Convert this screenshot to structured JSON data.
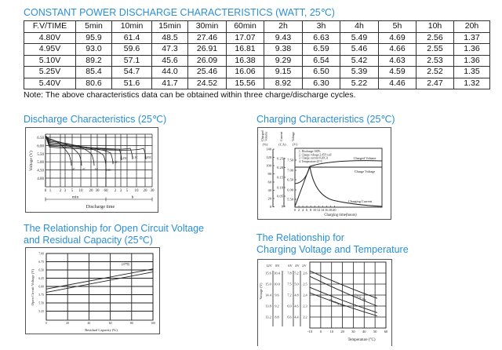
{
  "table": {
    "title": "CONSTANT POWER DISCHARGE CHARACTERISTICS (WATT, 25℃)",
    "headers": [
      "F.V/TIME",
      "5min",
      "10min",
      "15min",
      "30min",
      "60min",
      "2h",
      "3h",
      "4h",
      "5h",
      "10h",
      "20h"
    ],
    "rows": [
      [
        "4.80V",
        "95.9",
        "61.4",
        "48.5",
        "27.46",
        "17.07",
        "9.43",
        "6.63",
        "5.49",
        "4.69",
        "2.56",
        "1.37"
      ],
      [
        "4.95V",
        "93.0",
        "59.6",
        "47.3",
        "26.91",
        "16.81",
        "9.38",
        "6.59",
        "5.46",
        "4.66",
        "2.55",
        "1.36"
      ],
      [
        "5.10V",
        "89.2",
        "57.1",
        "45.6",
        "26.09",
        "16.38",
        "9.29",
        "6.54",
        "5.42",
        "4.63",
        "2.53",
        "1.36"
      ],
      [
        "5.25V",
        "85.4",
        "54.7",
        "44.0",
        "25.46",
        "16.06",
        "9.15",
        "6.50",
        "5.39",
        "4.59",
        "2.52",
        "1.35"
      ],
      [
        "5.40V",
        "80.6",
        "51.6",
        "41.7",
        "24.52",
        "15.56",
        "8.92",
        "6.30",
        "5.22",
        "4.46",
        "2.47",
        "1.32"
      ]
    ],
    "note": "Note: The above characteristics data can be obtained within three charge/discharge cycles."
  },
  "discharge": {
    "title": "Discharge Characteristics (25℃)",
    "ylabel": "Voltage (V)",
    "yticks": [
      "6.50",
      "6.00",
      "5.50",
      "5.00",
      "4.50",
      "4.00"
    ],
    "xticks": [
      "0",
      "1",
      "2",
      "3",
      "5",
      "10",
      "20",
      "30",
      "60",
      "2",
      "3",
      "5",
      "10",
      "20",
      "30"
    ],
    "unit_min": "min",
    "unit_h": "h",
    "xlabel": "Discharge time",
    "curve_labels": [
      "3C",
      "2C",
      "1C",
      "0.6C",
      "0.4C",
      "0.25C",
      "0.1C",
      "0.05C"
    ]
  },
  "charging": {
    "title": "Charging Characteristics (25℃)",
    "axis_heads": [
      "Charged Volume",
      "Current",
      "Voltage"
    ],
    "axis_units": [
      "(%)",
      "(CA)",
      "(V)"
    ],
    "volume_ticks": [
      "140",
      "120",
      "100",
      "80",
      "60",
      "40",
      "20",
      "0"
    ],
    "current_ticks": [
      "0.25",
      "0.20",
      "0.15",
      "0.10",
      "0.05",
      "0"
    ],
    "voltage_ticks": [
      "7.50",
      "7.00",
      "6.50",
      "6.00",
      "5.50"
    ],
    "xticks": [
      "0",
      "2",
      "4",
      "6",
      "8",
      "10",
      "12",
      "14",
      "16",
      "18",
      "20"
    ],
    "xlabel": "Charging time(hours)",
    "notes": [
      "1. Discharge:100%",
      "2. Charge voltage:2.45V/cell",
      "3. Charge current:0.20CA",
      "4. Temperature:25°C"
    ],
    "labels": {
      "volume": "Charged Volume",
      "voltage": "Charge Voltage",
      "current": "Charging Current"
    }
  },
  "ocv": {
    "title_line1": "The Relationship for Open Circuit Voltage",
    "title_line2": "and Residual Capacity (25℃)",
    "ylabel": "Open Circuit Voltage (V)",
    "yticks": [
      "7.00",
      "6.75",
      "6.50",
      "6.25",
      "6.00",
      "5.75",
      "5.50",
      "5.25"
    ],
    "xticks": [
      "0",
      "20",
      "40",
      "60",
      "80",
      "100"
    ],
    "xlabel": "Residual Capacity (%)",
    "legend": "(25℃)",
    "lines": [
      {
        "x": [
          0,
          100
        ],
        "y": [
          5.92,
          6.53
        ]
      },
      {
        "x": [
          0,
          100
        ],
        "y": [
          5.82,
          6.44
        ]
      }
    ]
  },
  "chgtemp": {
    "title_line1": "The Relationship for",
    "title_line2": "Charging Voltage and Temperature",
    "ylabel": "Voltage (V)",
    "col_heads": [
      "12V",
      "8V",
      "6V",
      "4V",
      "2V"
    ],
    "rows": [
      [
        "15.6",
        "10.4",
        "7.8",
        "5.2",
        "2.6"
      ],
      [
        "15.0",
        "10.0",
        "7.5",
        "5.0",
        "2.5"
      ],
      [
        "14.4",
        "9.6",
        "7.2",
        "4.8",
        "2.4"
      ],
      [
        "13.8",
        "9.2",
        "6.9",
        "4.6",
        "2.3"
      ],
      [
        "13.2",
        "8.8",
        "6.6",
        "4.4",
        "2.2"
      ]
    ],
    "xticks": [
      "-10",
      "0",
      "10",
      "20",
      "30",
      "40",
      "50",
      "60"
    ],
    "xlabel": "Temperature (°C)",
    "band_labels": [
      "Cycle use",
      "Floating use"
    ]
  }
}
